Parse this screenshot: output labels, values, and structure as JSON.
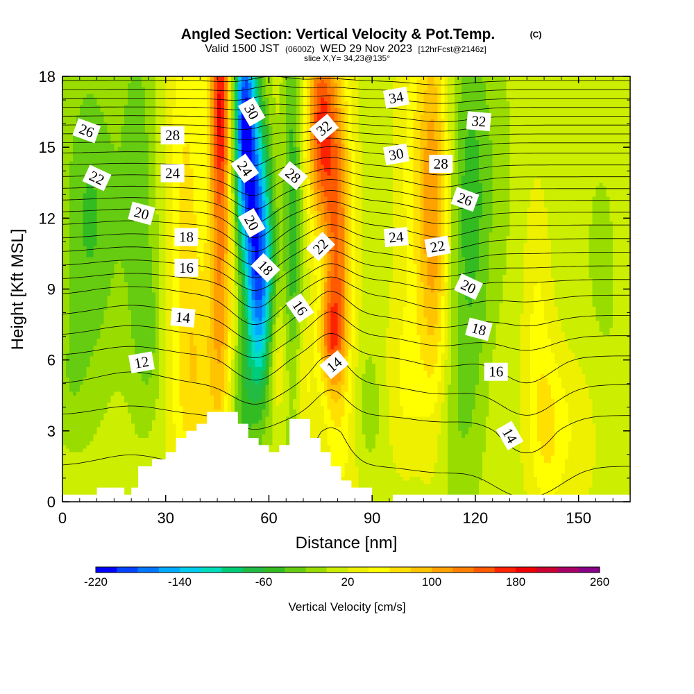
{
  "chart_data": {
    "type": "heatmap",
    "title": "Angled Section: Vertical Velocity & Pot.Temp.",
    "title_mark": "(C)",
    "subtitle_parts": [
      "Valid 1500 JST",
      "(0600Z)",
      "WED 29 Nov 2023",
      "[12hrFcst@2146z]"
    ],
    "slice_label": "slice X,Y= 34,23@135°",
    "xlabel": "Distance [nm]",
    "ylabel": "Height [Kft MSL]",
    "xlim": [
      0,
      165
    ],
    "ylim": [
      0,
      18
    ],
    "xticks": [
      0,
      30,
      60,
      90,
      120,
      150
    ],
    "yticks": [
      0,
      3,
      6,
      9,
      12,
      15,
      18
    ],
    "colorbar": {
      "label": "Vertical Velocity [cm/s]",
      "min": -220,
      "max": 260,
      "step": 20,
      "tick_labels": [
        -220,
        -140,
        -60,
        20,
        100,
        180,
        260
      ],
      "colors": [
        "#0000ff",
        "#0044ff",
        "#0077ff",
        "#00aaff",
        "#00ccee",
        "#00ddbb",
        "#00cc77",
        "#22bb44",
        "#33bb22",
        "#66cc11",
        "#99dd00",
        "#ccee00",
        "#eef000",
        "#ffff00",
        "#ffe000",
        "#ffc400",
        "#ffa200",
        "#ff8000",
        "#ff5a00",
        "#ff2200",
        "#ee0000",
        "#cc0033",
        "#aa0066",
        "#880088"
      ]
    },
    "velocity_background": 12,
    "velocity_features": [
      {
        "x": 8,
        "y": 12,
        "sx": 6,
        "sy": 5,
        "v": -55
      },
      {
        "x": 22,
        "y": 14,
        "sx": 4,
        "sy": 6,
        "v": -40
      },
      {
        "x": 25,
        "y": 7,
        "sx": 3,
        "sy": 2.5,
        "v": -30
      },
      {
        "x": 2,
        "y": 5,
        "sx": 4,
        "sy": 2,
        "v": -20
      },
      {
        "x": 36,
        "y": 11,
        "sx": 4,
        "sy": 8,
        "v": 55
      },
      {
        "x": 40,
        "y": 5,
        "sx": 4,
        "sy": 3,
        "v": 35
      },
      {
        "x": 46,
        "y": 12,
        "sx": 2.5,
        "sy": 7,
        "v": 110
      },
      {
        "x": 46,
        "y": 17,
        "sx": 2,
        "sy": 2.5,
        "v": 90
      },
      {
        "x": 53,
        "y": 16,
        "sx": 2.5,
        "sy": 3.5,
        "v": -210
      },
      {
        "x": 57,
        "y": 11,
        "sx": 2.8,
        "sy": 3.5,
        "v": -170
      },
      {
        "x": 58,
        "y": 7,
        "sx": 3,
        "sy": 3,
        "v": -70
      },
      {
        "x": 52,
        "y": 4,
        "sx": 2.5,
        "sy": 2,
        "v": -50
      },
      {
        "x": 67,
        "y": 12,
        "sx": 2,
        "sy": 7,
        "v": -65
      },
      {
        "x": 62,
        "y": 6,
        "sx": 2.5,
        "sy": 2,
        "v": 45
      },
      {
        "x": 70,
        "y": 5,
        "sx": 2.5,
        "sy": 2,
        "v": 35
      },
      {
        "x": 75,
        "y": 16,
        "sx": 3,
        "sy": 3,
        "v": 140
      },
      {
        "x": 80,
        "y": 11,
        "sx": 3,
        "sy": 5,
        "v": 120
      },
      {
        "x": 78,
        "y": 7,
        "sx": 2.5,
        "sy": 1.5,
        "v": 80
      },
      {
        "x": 82,
        "y": 2,
        "sx": 4,
        "sy": 2.5,
        "v": 15
      },
      {
        "x": 89,
        "y": 4,
        "sx": 3,
        "sy": 2,
        "v": -25
      },
      {
        "x": 103,
        "y": 14,
        "sx": 4,
        "sy": 5,
        "v": 40
      },
      {
        "x": 108,
        "y": 12,
        "sx": 3,
        "sy": 6,
        "v": 90
      },
      {
        "x": 100,
        "y": 5,
        "sx": 4,
        "sy": 2.5,
        "v": 30
      },
      {
        "x": 118,
        "y": 12,
        "sx": 4,
        "sy": 6,
        "v": -55
      },
      {
        "x": 113,
        "y": 3,
        "sx": 6,
        "sy": 3,
        "v": -20
      },
      {
        "x": 125,
        "y": 14,
        "sx": 5,
        "sy": 5,
        "v": -20
      },
      {
        "x": 128,
        "y": 3,
        "sx": 4,
        "sy": 2.5,
        "v": 5
      },
      {
        "x": 138,
        "y": 8,
        "sx": 3,
        "sy": 4,
        "v": 30
      },
      {
        "x": 141,
        "y": 3,
        "sx": 3.5,
        "sy": 2.5,
        "v": 45
      },
      {
        "x": 150,
        "y": 3,
        "sx": 5,
        "sy": 2.5,
        "v": 25
      },
      {
        "x": 157,
        "y": 9,
        "sx": 5,
        "sy": 6,
        "v": -15
      },
      {
        "x": 145,
        "y": 15,
        "sx": 6,
        "sy": 5,
        "v": -5
      }
    ],
    "theta_levels": {
      "min": 8,
      "max": 37,
      "step": 1
    },
    "theta_profile": {
      "heights": [
        0,
        3,
        6,
        9,
        12,
        15,
        18
      ],
      "values": [
        9.5,
        10.5,
        12.8,
        16.3,
        21.5,
        27.5,
        35.5
      ]
    },
    "theta_perturbations": [
      {
        "x": 56,
        "y": 12,
        "sx": 6,
        "sy": 5,
        "dt": 2.2
      },
      {
        "x": 58,
        "y": 17,
        "sx": 6,
        "sy": 3,
        "dt": -1.5
      },
      {
        "x": 78,
        "y": 9,
        "sx": 5,
        "sy": 5,
        "dt": -1.2
      },
      {
        "x": 110,
        "y": 12,
        "sx": 8,
        "sy": 5,
        "dt": 0.9
      },
      {
        "x": 135,
        "y": 4,
        "sx": 8,
        "sy": 3,
        "dt": 1.0
      },
      {
        "x": 20,
        "y": 8,
        "sx": 10,
        "sy": 4,
        "dt": -0.5
      }
    ],
    "terrain": [
      [
        0,
        0.3
      ],
      [
        10,
        0.3
      ],
      [
        10,
        0.6
      ],
      [
        18,
        0.6
      ],
      [
        18,
        0.3
      ],
      [
        20,
        0.3
      ],
      [
        20,
        0.6
      ],
      [
        22,
        0.6
      ],
      [
        22,
        1.5
      ],
      [
        26,
        1.5
      ],
      [
        26,
        1.8
      ],
      [
        30,
        1.8
      ],
      [
        30,
        2.1
      ],
      [
        33,
        2.1
      ],
      [
        33,
        2.7
      ],
      [
        36,
        2.7
      ],
      [
        36,
        3.0
      ],
      [
        39,
        3.0
      ],
      [
        39,
        3.3
      ],
      [
        42,
        3.3
      ],
      [
        42,
        3.8
      ],
      [
        51,
        3.8
      ],
      [
        51,
        3.3
      ],
      [
        54,
        3.3
      ],
      [
        54,
        2.7
      ],
      [
        57,
        2.7
      ],
      [
        57,
        2.4
      ],
      [
        60,
        2.4
      ],
      [
        60,
        2.1
      ],
      [
        63,
        2.1
      ],
      [
        63,
        2.4
      ],
      [
        66,
        2.4
      ],
      [
        66,
        3.5
      ],
      [
        72,
        3.5
      ],
      [
        72,
        2.7
      ],
      [
        75,
        2.7
      ],
      [
        75,
        2.1
      ],
      [
        78,
        2.1
      ],
      [
        78,
        1.5
      ],
      [
        81,
        1.5
      ],
      [
        81,
        0.9
      ],
      [
        84,
        0.9
      ],
      [
        84,
        0.6
      ],
      [
        90,
        0.6
      ],
      [
        90,
        0.0
      ],
      [
        96,
        0.0
      ],
      [
        96,
        0.3
      ],
      [
        165,
        0.3
      ]
    ],
    "contour_labels": [
      {
        "text": "26",
        "x": 7,
        "y": 15.7,
        "rot": 20
      },
      {
        "text": "22",
        "x": 10,
        "y": 13.7,
        "rot": 25
      },
      {
        "text": "20",
        "x": 23,
        "y": 12.2,
        "rot": 15
      },
      {
        "text": "28",
        "x": 32,
        "y": 15.5,
        "rot": 0
      },
      {
        "text": "24",
        "x": 32,
        "y": 13.9,
        "rot": 0
      },
      {
        "text": "18",
        "x": 36,
        "y": 11.2,
        "rot": 0
      },
      {
        "text": "16",
        "x": 36,
        "y": 9.9,
        "rot": 0
      },
      {
        "text": "14",
        "x": 35,
        "y": 7.8,
        "rot": 5
      },
      {
        "text": "12",
        "x": 23,
        "y": 5.9,
        "rot": -10
      },
      {
        "text": "30",
        "x": 55,
        "y": 16.5,
        "rot": 60
      },
      {
        "text": "24",
        "x": 53,
        "y": 14.1,
        "rot": 55
      },
      {
        "text": "20",
        "x": 55,
        "y": 11.8,
        "rot": 60
      },
      {
        "text": "18",
        "x": 59,
        "y": 9.9,
        "rot": 45
      },
      {
        "text": "28",
        "x": 67,
        "y": 13.8,
        "rot": 40
      },
      {
        "text": "32",
        "x": 76,
        "y": 15.8,
        "rot": -40
      },
      {
        "text": "22",
        "x": 75,
        "y": 10.8,
        "rot": -45
      },
      {
        "text": "16",
        "x": 69,
        "y": 8.2,
        "rot": 55
      },
      {
        "text": "14",
        "x": 79,
        "y": 5.8,
        "rot": -40
      },
      {
        "text": "34",
        "x": 97,
        "y": 17.1,
        "rot": -10
      },
      {
        "text": "30",
        "x": 97,
        "y": 14.7,
        "rot": -10
      },
      {
        "text": "24",
        "x": 97,
        "y": 11.2,
        "rot": -5
      },
      {
        "text": "28",
        "x": 110,
        "y": 14.3,
        "rot": 0
      },
      {
        "text": "22",
        "x": 109,
        "y": 10.8,
        "rot": -10
      },
      {
        "text": "26",
        "x": 117,
        "y": 12.8,
        "rot": 20
      },
      {
        "text": "32",
        "x": 121,
        "y": 16.1,
        "rot": 5
      },
      {
        "text": "20",
        "x": 118,
        "y": 9.1,
        "rot": 25
      },
      {
        "text": "18",
        "x": 121,
        "y": 7.3,
        "rot": 15
      },
      {
        "text": "16",
        "x": 126,
        "y": 5.5,
        "rot": 0
      },
      {
        "text": "14",
        "x": 130,
        "y": 2.8,
        "rot": 60
      }
    ]
  }
}
